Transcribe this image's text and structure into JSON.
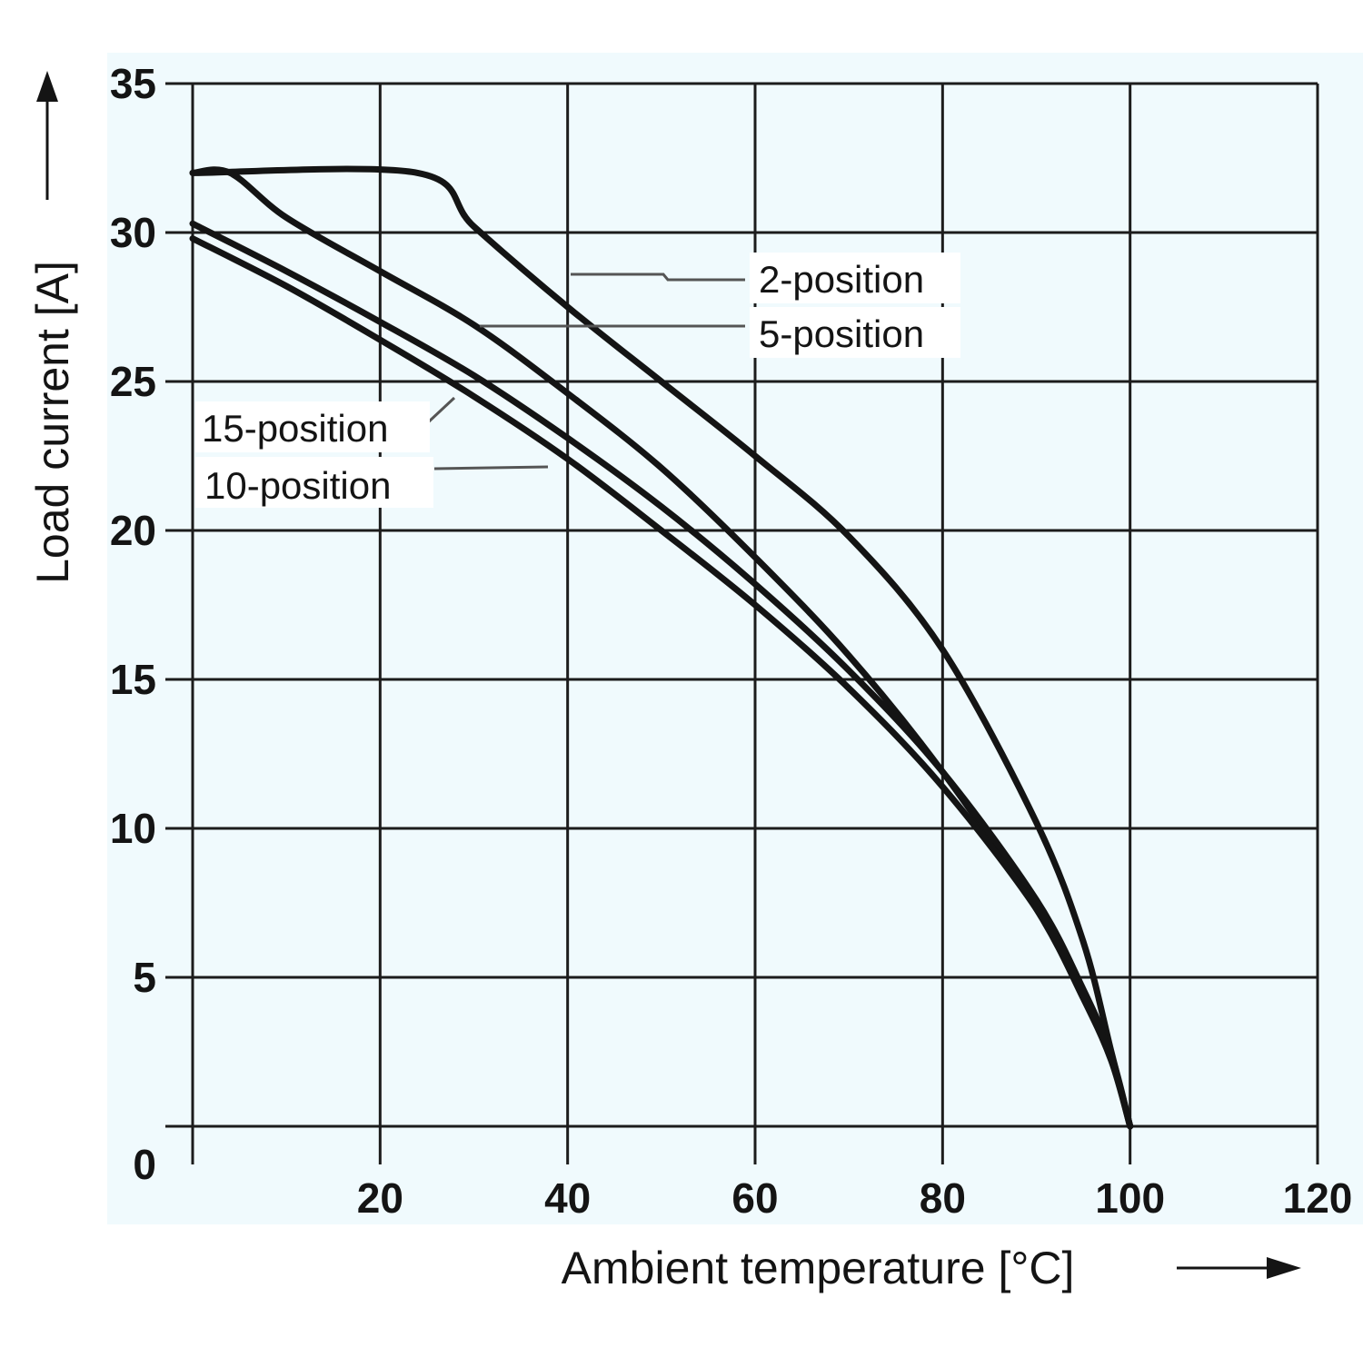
{
  "chart_data": {
    "type": "line",
    "xlabel": "Ambient temperature [°C]",
    "ylabel": "Load current [A]",
    "xlim": [
      0,
      120
    ],
    "ylim": [
      0,
      35
    ],
    "x_ticks": [
      0,
      20,
      40,
      60,
      80,
      100,
      120
    ],
    "x_tick_labels": [
      "",
      "20",
      "40",
      "60",
      "80",
      "100",
      "120"
    ],
    "y_ticks": [
      0,
      5,
      10,
      15,
      20,
      25,
      30,
      35
    ],
    "y_tick_labels": [
      "0",
      "5",
      "10",
      "15",
      "20",
      "25",
      "30",
      "35"
    ],
    "grid": true,
    "background_color": "#f0fafd",
    "line_color": "#141414",
    "series": [
      {
        "name": "2-position",
        "x": [
          0,
          24,
          30,
          40,
          50,
          60,
          70,
          80,
          90,
          95,
          98,
          100
        ],
        "y": [
          32,
          32,
          30.2,
          27.5,
          25,
          22.5,
          19.8,
          16,
          10.2,
          6.2,
          2.5,
          0
        ]
      },
      {
        "name": "5-position",
        "x": [
          0,
          4,
          10,
          20,
          30,
          40,
          50,
          60,
          70,
          80,
          90,
          95,
          98,
          100
        ],
        "y": [
          32,
          32,
          30.5,
          28.7,
          26.9,
          24.6,
          22.1,
          19.1,
          15.8,
          11.9,
          7.3,
          4.3,
          2.2,
          0
        ]
      },
      {
        "name": "15-position",
        "x": [
          0,
          10,
          20,
          30,
          40,
          50,
          60,
          70,
          80,
          90,
          95,
          98,
          100
        ],
        "y": [
          30.3,
          28.7,
          27,
          25.2,
          23.1,
          20.8,
          18.2,
          15.3,
          11.9,
          7.6,
          4.6,
          2.4,
          0
        ]
      },
      {
        "name": "10-position",
        "x": [
          0,
          10,
          20,
          30,
          40,
          50,
          60,
          70,
          80,
          90,
          95,
          98,
          100
        ],
        "y": [
          29.8,
          28.2,
          26.4,
          24.5,
          22.4,
          20,
          17.5,
          14.7,
          11.4,
          7.3,
          4.4,
          2.3,
          0
        ]
      }
    ]
  }
}
